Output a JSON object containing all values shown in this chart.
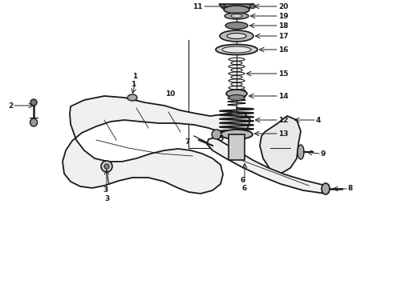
{
  "bg_color": "#ffffff",
  "line_color": "#1a1a1a",
  "fig_width": 4.9,
  "fig_height": 3.6,
  "dpi": 100,
  "label_fontsize": 6.5,
  "label_fontweight": "bold"
}
